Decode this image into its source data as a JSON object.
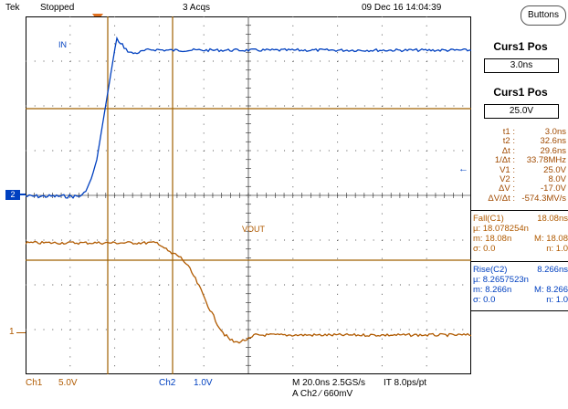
{
  "top_bar": {
    "brand": "Tek",
    "run_state": "Stopped",
    "acquisitions": "3 Acqs",
    "datetime": "09 Dec 16 14:04:39",
    "buttons_label": "Buttons"
  },
  "channel_labels": {
    "ch1_trace": "IN",
    "ch2_trace": "VOUT",
    "ch2_marker": "2",
    "ch1_marker": "1"
  },
  "colors": {
    "ch1": "#0040c0",
    "ch2": "#b05a00",
    "cursor": "#a06000",
    "grid": "#000000"
  },
  "cursor_panel": {
    "title1": "Curs1 Pos",
    "value1": "3.0ns",
    "title2": "Curs1 Pos",
    "value2": "25.0V",
    "readouts": [
      {
        "label": "t1 :",
        "value": "3.0ns"
      },
      {
        "label": "t2 :",
        "value": "32.6ns"
      },
      {
        "label": "Δt :",
        "value": "29.6ns"
      },
      {
        "label": "1/Δt :",
        "value": "33.78MHz"
      },
      {
        "label": "V1 :",
        "value": "25.0V"
      },
      {
        "label": "V2 :",
        "value": "8.0V"
      },
      {
        "label": "ΔV :",
        "value": "-17.0V"
      },
      {
        "label": "ΔV/Δt :",
        "value": "-574.3MV/s"
      }
    ]
  },
  "measurements": {
    "fall": {
      "name": "Fall(C1)",
      "value": "18.08ns",
      "mu": "µ: 18.078254n",
      "m_label": "m: 18.08n",
      "M_label": "M: 18.08",
      "sigma": "σ: 0.0",
      "n": "n: 1.0"
    },
    "rise": {
      "name": "Rise(C2)",
      "value": "8.266ns",
      "mu": "µ: 8.2657523n",
      "m_label": "m: 8.266n",
      "M_label": "M: 8.266",
      "sigma": "σ: 0.0",
      "n": "n: 1.0"
    }
  },
  "bottom_bar": {
    "ch1": "Ch1",
    "ch1_scale": "5.0V",
    "ch2": "Ch2",
    "ch2_scale": "1.0V",
    "timebase": "M 20.0ns 2.5GS/s",
    "record": "IT 8.0ps/pt",
    "trigger": "A  Ch2  ⁄  660mV"
  }
}
